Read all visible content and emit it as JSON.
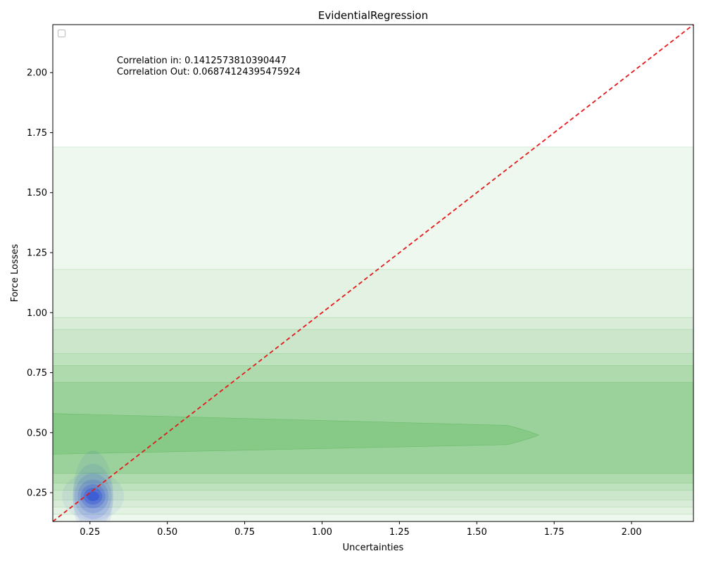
{
  "chart_data": {
    "type": "density-contour",
    "title": "EvidentialRegression",
    "xlabel": "Uncertainties",
    "ylabel": "Force Losses",
    "xlim": [
      0.13,
      2.2
    ],
    "ylim": [
      0.13,
      2.2
    ],
    "x_ticks": [
      0.25,
      0.5,
      0.75,
      1.0,
      1.25,
      1.5,
      1.75,
      2.0
    ],
    "x_tick_labels": [
      "0.25",
      "0.50",
      "0.75",
      "1.00",
      "1.25",
      "1.50",
      "1.75",
      "2.00"
    ],
    "y_ticks": [
      0.25,
      0.5,
      0.75,
      1.0,
      1.25,
      1.5,
      1.75,
      2.0
    ],
    "y_tick_labels": [
      "0.25",
      "0.50",
      "0.75",
      "1.00",
      "1.25",
      "1.50",
      "1.75",
      "2.00"
    ],
    "grid": false,
    "legend": {
      "position": "upper-left",
      "entries": []
    },
    "annotations": [
      "Correlation in: 0.1412573810390447",
      "Correlation Out: 0.06874124395475924"
    ],
    "reference_line": {
      "style": "dashed",
      "color": "#e41a1c",
      "from": [
        0.13,
        0.13
      ],
      "to": [
        2.2,
        2.2
      ]
    },
    "series": [
      {
        "color": "#2ca02c",
        "bands": [
          {
            "ymin": 0.13,
            "ymax": 1.69,
            "opacity": 0.08
          },
          {
            "ymin": 0.16,
            "ymax": 1.18,
            "opacity": 0.06
          },
          {
            "ymin": 0.19,
            "ymax": 0.98,
            "opacity": 0.06
          },
          {
            "ymin": 0.22,
            "ymax": 0.93,
            "opacity": 0.07
          },
          {
            "ymin": 0.26,
            "ymax": 0.83,
            "opacity": 0.08
          },
          {
            "ymin": 0.29,
            "ymax": 0.78,
            "opacity": 0.1
          },
          {
            "ymin": 0.33,
            "ymax": 0.71,
            "opacity": 0.14
          }
        ],
        "peak": {
          "ymin": 0.41,
          "ymax": 0.58,
          "x_end": 1.7,
          "y_tip": 0.49,
          "opacity": 0.18
        }
      },
      {
        "color": "#1f3fd6",
        "center": [
          0.26,
          0.235
        ],
        "levels": [
          {
            "rx": 0.1,
            "ry": 0.1,
            "opacity": 0.06
          },
          {
            "rx": 0.065,
            "ry": 0.19,
            "opacity": 0.07
          },
          {
            "rx": 0.065,
            "ry": 0.135,
            "opacity": 0.09
          },
          {
            "rx": 0.06,
            "ry": 0.095,
            "opacity": 0.12
          },
          {
            "rx": 0.05,
            "ry": 0.07,
            "opacity": 0.16
          },
          {
            "rx": 0.04,
            "ry": 0.05,
            "opacity": 0.22
          },
          {
            "rx": 0.03,
            "ry": 0.035,
            "opacity": 0.3
          },
          {
            "rx": 0.02,
            "ry": 0.02,
            "opacity": 0.4
          }
        ]
      }
    ]
  }
}
